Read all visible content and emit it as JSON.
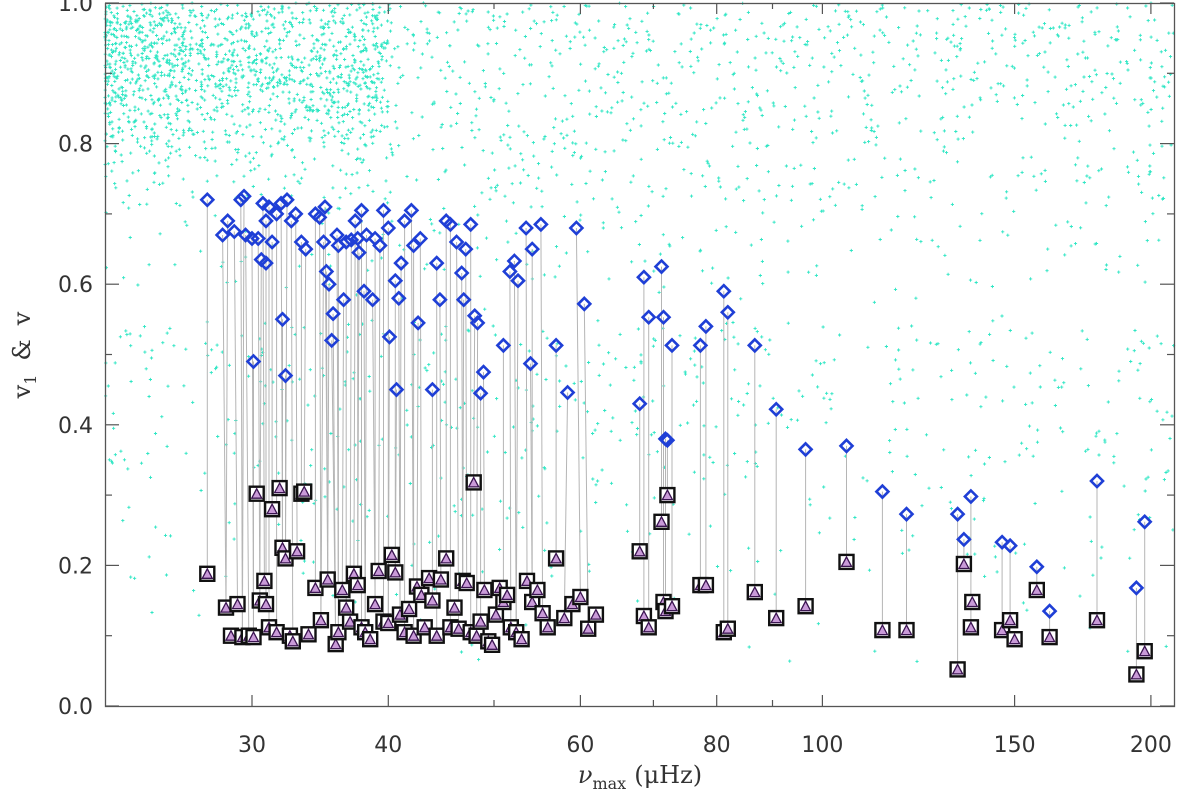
{
  "chart_data": {
    "type": "scatter",
    "xlabel": "νmax (μHz)",
    "xlabel_parts": {
      "symbol": "ν",
      "subscript": "max",
      "unit": "(μHz)"
    },
    "ylabel": "v1 & v",
    "ylabel_parts": {
      "v1_main": "v",
      "v1_sub": "1",
      "amp": "&",
      "v": "v"
    },
    "x_scale": "log",
    "xlim": [
      22,
      210
    ],
    "ylim": [
      0.0,
      1.0
    ],
    "x_ticks": [
      30,
      40,
      60,
      80,
      100,
      150,
      200
    ],
    "x_tick_labels": [
      "30",
      "40",
      "60",
      "80",
      "100",
      "150",
      "200"
    ],
    "x_minor_ticks": [
      50,
      70,
      90
    ],
    "y_ticks": [
      0.0,
      0.2,
      0.4,
      0.6,
      0.8,
      1.0
    ],
    "y_tick_labels": [
      "0.0",
      "0.2",
      "0.4",
      "0.6",
      "0.8",
      "1.0"
    ],
    "y_minor_ticks": [
      0.1,
      0.3,
      0.5,
      0.7,
      0.9
    ],
    "grid": false,
    "legend": "none",
    "colors": {
      "background_points": "#2ee6c4",
      "v1_markers": "#1f3fd6",
      "v_fill": "#c99ad8",
      "v_outline": "#111111",
      "connectors": "#b5b5b5",
      "frame": "#555555"
    },
    "background_cloud": {
      "description_of_markers": "small cyan plus signs",
      "regions": [
        {
          "x_range": [
            22,
            40
          ],
          "y_center": 0.92,
          "y_spread": 0.07,
          "count": 1300
        },
        {
          "x_range": [
            22,
            210
          ],
          "y_range": [
            0.55,
            1.0
          ],
          "count": 1400
        },
        {
          "x_range": [
            22,
            210
          ],
          "y_range": [
            0.05,
            0.55
          ],
          "count": 600
        }
      ]
    },
    "series": [
      {
        "marker": "diamond",
        "color": "#1f3fd6",
        "points": [
          [
            27.3,
            0.72
          ],
          [
            28.2,
            0.67
          ],
          [
            28.5,
            0.69
          ],
          [
            28.9,
            0.675
          ],
          [
            29.3,
            0.72
          ],
          [
            29.5,
            0.725
          ],
          [
            29.6,
            0.67
          ],
          [
            30.0,
            0.665
          ],
          [
            30.1,
            0.49
          ],
          [
            30.4,
            0.665
          ],
          [
            30.6,
            0.635
          ],
          [
            30.7,
            0.715
          ],
          [
            30.9,
            0.63
          ],
          [
            30.9,
            0.69
          ],
          [
            31.1,
            0.71
          ],
          [
            31.3,
            0.66
          ],
          [
            31.6,
            0.7
          ],
          [
            31.9,
            0.715
          ],
          [
            32.0,
            0.55
          ],
          [
            32.2,
            0.47
          ],
          [
            32.3,
            0.72
          ],
          [
            32.6,
            0.69
          ],
          [
            32.9,
            0.7
          ],
          [
            33.3,
            0.66
          ],
          [
            33.6,
            0.65
          ],
          [
            34.3,
            0.7
          ],
          [
            34.6,
            0.695
          ],
          [
            34.9,
            0.66
          ],
          [
            35.0,
            0.71
          ],
          [
            35.1,
            0.618
          ],
          [
            35.3,
            0.6
          ],
          [
            35.5,
            0.52
          ],
          [
            35.6,
            0.558
          ],
          [
            35.9,
            0.67
          ],
          [
            36.0,
            0.655
          ],
          [
            36.4,
            0.578
          ],
          [
            36.6,
            0.66
          ],
          [
            37.0,
            0.663
          ],
          [
            37.3,
            0.69
          ],
          [
            37.5,
            0.665
          ],
          [
            37.6,
            0.645
          ],
          [
            37.8,
            0.705
          ],
          [
            38.0,
            0.59
          ],
          [
            38.2,
            0.67
          ],
          [
            38.7,
            0.578
          ],
          [
            38.9,
            0.665
          ],
          [
            39.3,
            0.655
          ],
          [
            39.6,
            0.705
          ],
          [
            40.0,
            0.68
          ],
          [
            40.1,
            0.525
          ],
          [
            40.6,
            0.605
          ],
          [
            40.7,
            0.45
          ],
          [
            40.9,
            0.58
          ],
          [
            41.1,
            0.63
          ],
          [
            41.4,
            0.69
          ],
          [
            42.0,
            0.705
          ],
          [
            42.2,
            0.655
          ],
          [
            42.6,
            0.545
          ],
          [
            42.8,
            0.665
          ],
          [
            43.9,
            0.45
          ],
          [
            44.3,
            0.63
          ],
          [
            44.6,
            0.578
          ],
          [
            45.2,
            0.69
          ],
          [
            45.6,
            0.685
          ],
          [
            46.2,
            0.66
          ],
          [
            46.7,
            0.616
          ],
          [
            46.9,
            0.578
          ],
          [
            47.1,
            0.65
          ],
          [
            47.6,
            0.685
          ],
          [
            48.0,
            0.555
          ],
          [
            48.3,
            0.545
          ],
          [
            48.6,
            0.445
          ],
          [
            48.9,
            0.475
          ],
          [
            51.0,
            0.513
          ],
          [
            51.7,
            0.618
          ],
          [
            52.2,
            0.633
          ],
          [
            52.6,
            0.605
          ],
          [
            53.5,
            0.68
          ],
          [
            54.0,
            0.487
          ],
          [
            54.2,
            0.65
          ],
          [
            55.2,
            0.685
          ],
          [
            57.0,
            0.513
          ],
          [
            58.4,
            0.446
          ],
          [
            59.5,
            0.68
          ],
          [
            60.5,
            0.572
          ],
          [
            68.0,
            0.43
          ],
          [
            68.6,
            0.61
          ],
          [
            69.3,
            0.553
          ],
          [
            71.2,
            0.625
          ],
          [
            71.5,
            0.553
          ],
          [
            71.8,
            0.38
          ],
          [
            72.1,
            0.378
          ],
          [
            72.8,
            0.513
          ],
          [
            77.3,
            0.513
          ],
          [
            78.2,
            0.54
          ],
          [
            81.2,
            0.59
          ],
          [
            81.9,
            0.56
          ],
          [
            86.7,
            0.513
          ],
          [
            90.7,
            0.422
          ],
          [
            96.5,
            0.365
          ],
          [
            105.2,
            0.37
          ],
          [
            113.5,
            0.305
          ],
          [
            119.4,
            0.273
          ],
          [
            133.0,
            0.273
          ],
          [
            134.8,
            0.237
          ],
          [
            136.8,
            0.298
          ],
          [
            146.1,
            0.233
          ],
          [
            148.6,
            0.228
          ],
          [
            157.2,
            0.198
          ],
          [
            161.5,
            0.135
          ],
          [
            178.5,
            0.32
          ],
          [
            194.0,
            0.168
          ],
          [
            197.4,
            0.262
          ]
        ]
      },
      {
        "marker": "square-triangle",
        "color": "#111111",
        "points": [
          [
            27.3,
            0.188
          ],
          [
            28.4,
            0.14
          ],
          [
            28.7,
            0.1
          ],
          [
            29.1,
            0.145
          ],
          [
            29.4,
            0.098
          ],
          [
            29.8,
            0.1
          ],
          [
            30.1,
            0.098
          ],
          [
            30.3,
            0.302
          ],
          [
            30.5,
            0.15
          ],
          [
            30.8,
            0.178
          ],
          [
            30.9,
            0.145
          ],
          [
            31.1,
            0.112
          ],
          [
            31.3,
            0.28
          ],
          [
            31.6,
            0.105
          ],
          [
            31.8,
            0.31
          ],
          [
            32.0,
            0.225
          ],
          [
            32.2,
            0.21
          ],
          [
            32.5,
            0.1
          ],
          [
            32.7,
            0.092
          ],
          [
            33.0,
            0.22
          ],
          [
            33.3,
            0.302
          ],
          [
            33.5,
            0.305
          ],
          [
            33.8,
            0.102
          ],
          [
            34.3,
            0.168
          ],
          [
            34.7,
            0.122
          ],
          [
            35.2,
            0.18
          ],
          [
            35.8,
            0.088
          ],
          [
            36.0,
            0.105
          ],
          [
            36.3,
            0.165
          ],
          [
            36.6,
            0.14
          ],
          [
            36.9,
            0.12
          ],
          [
            37.2,
            0.188
          ],
          [
            37.5,
            0.172
          ],
          [
            37.8,
            0.112
          ],
          [
            38.1,
            0.105
          ],
          [
            38.5,
            0.095
          ],
          [
            38.9,
            0.145
          ],
          [
            39.2,
            0.192
          ],
          [
            39.6,
            0.12
          ],
          [
            40.0,
            0.118
          ],
          [
            40.3,
            0.215
          ],
          [
            40.6,
            0.19
          ],
          [
            41.0,
            0.13
          ],
          [
            41.4,
            0.105
          ],
          [
            41.8,
            0.138
          ],
          [
            42.2,
            0.1
          ],
          [
            42.5,
            0.17
          ],
          [
            42.9,
            0.158
          ],
          [
            43.2,
            0.112
          ],
          [
            43.6,
            0.182
          ],
          [
            43.9,
            0.15
          ],
          [
            44.3,
            0.1
          ],
          [
            44.7,
            0.18
          ],
          [
            45.2,
            0.21
          ],
          [
            45.6,
            0.112
          ],
          [
            46.0,
            0.14
          ],
          [
            46.4,
            0.11
          ],
          [
            46.8,
            0.178
          ],
          [
            47.2,
            0.175
          ],
          [
            47.6,
            0.105
          ],
          [
            47.9,
            0.318
          ],
          [
            48.2,
            0.1
          ],
          [
            48.6,
            0.12
          ],
          [
            49.0,
            0.165
          ],
          [
            49.4,
            0.092
          ],
          [
            49.8,
            0.087
          ],
          [
            50.2,
            0.13
          ],
          [
            50.6,
            0.168
          ],
          [
            51.0,
            0.148
          ],
          [
            51.4,
            0.158
          ],
          [
            51.8,
            0.112
          ],
          [
            52.4,
            0.105
          ],
          [
            53.0,
            0.095
          ],
          [
            53.6,
            0.178
          ],
          [
            54.2,
            0.148
          ],
          [
            54.8,
            0.165
          ],
          [
            55.4,
            0.132
          ],
          [
            56.0,
            0.112
          ],
          [
            57.0,
            0.21
          ],
          [
            58.0,
            0.125
          ],
          [
            59.0,
            0.145
          ],
          [
            60.0,
            0.155
          ],
          [
            61.0,
            0.11
          ],
          [
            62.0,
            0.13
          ],
          [
            68.0,
            0.22
          ],
          [
            68.6,
            0.128
          ],
          [
            69.3,
            0.112
          ],
          [
            71.2,
            0.262
          ],
          [
            71.5,
            0.148
          ],
          [
            71.8,
            0.135
          ],
          [
            72.1,
            0.3
          ],
          [
            72.8,
            0.142
          ],
          [
            77.3,
            0.172
          ],
          [
            78.2,
            0.172
          ],
          [
            81.2,
            0.105
          ],
          [
            81.9,
            0.11
          ],
          [
            86.7,
            0.162
          ],
          [
            90.7,
            0.125
          ],
          [
            96.5,
            0.142
          ],
          [
            105.2,
            0.205
          ],
          [
            113.5,
            0.108
          ],
          [
            119.4,
            0.108
          ],
          [
            133.0,
            0.052
          ],
          [
            134.8,
            0.202
          ],
          [
            136.8,
            0.112
          ],
          [
            137.2,
            0.148
          ],
          [
            146.1,
            0.108
          ],
          [
            148.6,
            0.122
          ],
          [
            150.0,
            0.095
          ],
          [
            157.2,
            0.165
          ],
          [
            161.5,
            0.098
          ],
          [
            178.5,
            0.122
          ],
          [
            194.0,
            0.045
          ],
          [
            197.4,
            0.078
          ]
        ]
      }
    ]
  }
}
